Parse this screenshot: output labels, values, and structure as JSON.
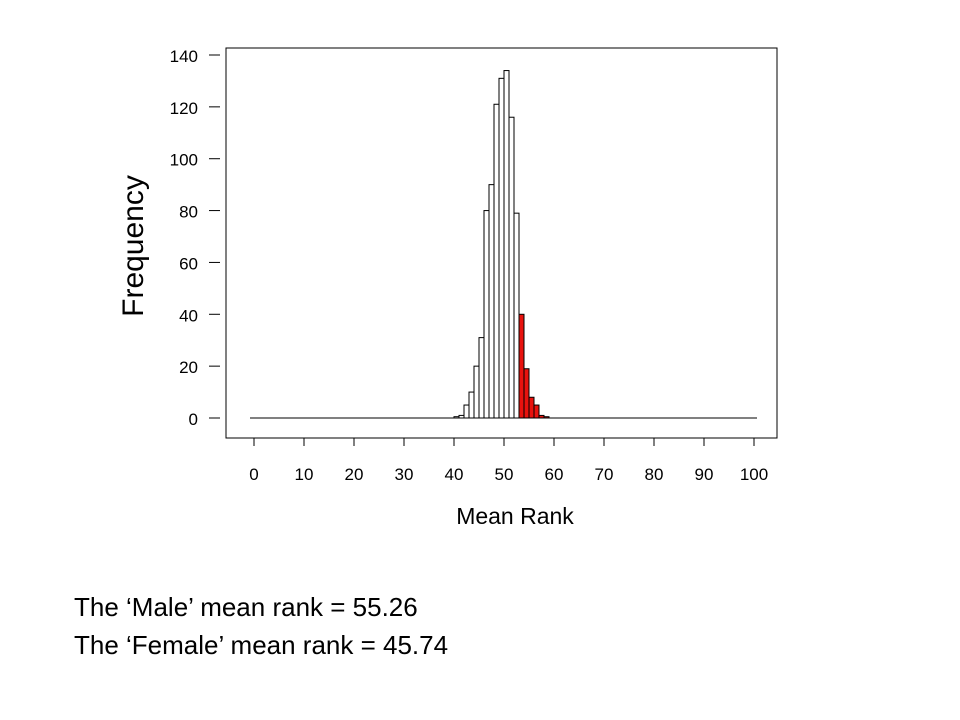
{
  "chart_data": {
    "type": "bar",
    "title": "",
    "xlabel": "Mean Rank",
    "ylabel": "Frequency",
    "xlim": [
      0,
      100
    ],
    "ylim": [
      0,
      140
    ],
    "x_ticks": [
      "0",
      "10",
      "20",
      "30",
      "40",
      "50",
      "60",
      "70",
      "80",
      "90",
      "100"
    ],
    "y_ticks": [
      "0",
      "20",
      "40",
      "60",
      "80",
      "100",
      "120",
      "140"
    ],
    "bin_width": 1,
    "bins": [
      {
        "x": 40,
        "value": 0.5,
        "highlight": false
      },
      {
        "x": 41,
        "value": 1,
        "highlight": false
      },
      {
        "x": 42,
        "value": 5,
        "highlight": false
      },
      {
        "x": 43,
        "value": 10,
        "highlight": false
      },
      {
        "x": 44,
        "value": 20,
        "highlight": false
      },
      {
        "x": 45,
        "value": 31,
        "highlight": false
      },
      {
        "x": 46,
        "value": 80,
        "highlight": false
      },
      {
        "x": 47,
        "value": 90,
        "highlight": false
      },
      {
        "x": 48,
        "value": 121,
        "highlight": false
      },
      {
        "x": 49,
        "value": 131,
        "highlight": false
      },
      {
        "x": 50,
        "value": 134,
        "highlight": false
      },
      {
        "x": 51,
        "value": 116,
        "highlight": false
      },
      {
        "x": 52,
        "value": 79,
        "highlight": false
      },
      {
        "x": 53,
        "value": 40,
        "highlight": true
      },
      {
        "x": 54,
        "value": 19,
        "highlight": true
      },
      {
        "x": 55,
        "value": 8,
        "highlight": true
      },
      {
        "x": 56,
        "value": 5,
        "highlight": true
      },
      {
        "x": 57,
        "value": 1,
        "highlight": true
      },
      {
        "x": 58,
        "value": 0.5,
        "highlight": true
      }
    ],
    "colors": {
      "normal": "#ffffff",
      "highlight": "#e8120e",
      "stroke": "#000000"
    },
    "grid": false,
    "legend": "none"
  },
  "captions": [
    "The ‘Male’ mean rank = 55.26",
    "The ‘Female’ mean rank = 45.74"
  ]
}
